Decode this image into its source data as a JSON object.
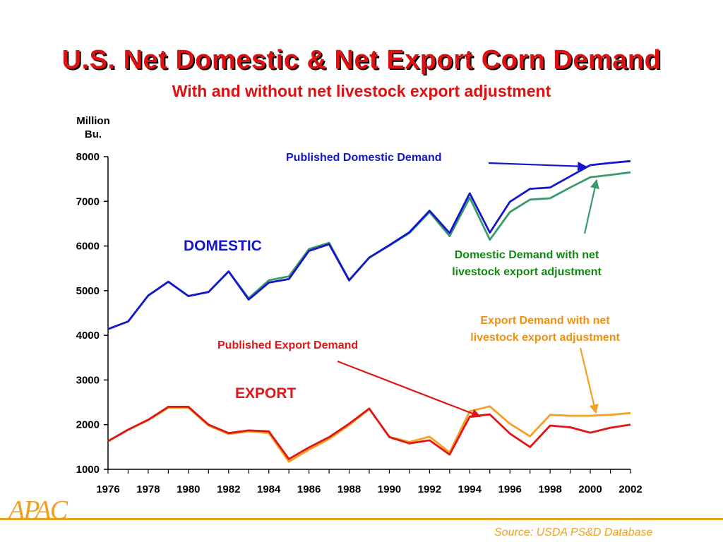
{
  "slide": {
    "title": "U.S. Net Domestic & Net Export Corn Demand",
    "subtitle": "With and without net livestock export adjustment",
    "logo": "APAC",
    "source": "Source:  USDA PS&D Database"
  },
  "colors": {
    "title": "#dd1111",
    "published_domestic": "#1515cc",
    "adjusted_domestic": "#3a9a6a",
    "published_export": "#e01515",
    "adjusted_export": "#f5a020",
    "label_domestic_adjusted": "#118811",
    "label_export_adjusted": "#f09010",
    "footer": "#f0a020"
  },
  "chart_data": {
    "type": "line",
    "ylabel": "Million\nBu.",
    "ylim": [
      1000,
      8000
    ],
    "yticks": [
      1000,
      2000,
      3000,
      4000,
      5000,
      6000,
      7000,
      8000
    ],
    "xlim": [
      1976,
      2002
    ],
    "xticks": [
      1976,
      1978,
      1980,
      1982,
      1984,
      1986,
      1988,
      1990,
      1992,
      1994,
      1996,
      1998,
      2000,
      2002
    ],
    "x": [
      1976,
      1977,
      1978,
      1979,
      1980,
      1981,
      1982,
      1983,
      1984,
      1985,
      1986,
      1987,
      1988,
      1989,
      1990,
      1991,
      1992,
      1993,
      1994,
      1995,
      1996,
      1997,
      1998,
      1999,
      2000,
      2001,
      2002
    ],
    "series": [
      {
        "name": "Published Domestic Demand",
        "color_key": "published_domestic",
        "values": [
          4140,
          4310,
          4890,
          5200,
          4880,
          4970,
          5430,
          4800,
          5180,
          5260,
          5890,
          6040,
          5230,
          5740,
          6020,
          6310,
          6790,
          6290,
          7180,
          6300,
          6990,
          7280,
          7310,
          7560,
          7810,
          7860,
          7900
        ]
      },
      {
        "name": "Domestic Demand with net livestock export adjustment",
        "color_key": "adjusted_domestic",
        "values": [
          4140,
          4310,
          4890,
          5200,
          4880,
          4970,
          5430,
          4830,
          5230,
          5320,
          5930,
          6070,
          5240,
          5740,
          6010,
          6290,
          6760,
          6220,
          7080,
          6140,
          6760,
          7040,
          7070,
          7310,
          7540,
          7590,
          7650
        ]
      },
      {
        "name": "Published Export Demand",
        "color_key": "published_export",
        "values": [
          1630,
          1890,
          2110,
          2400,
          2400,
          2000,
          1810,
          1870,
          1850,
          1230,
          1490,
          1720,
          2020,
          2360,
          1720,
          1580,
          1650,
          1330,
          2180,
          2230,
          1800,
          1500,
          1980,
          1940,
          1820,
          1930,
          2000
        ]
      },
      {
        "name": "Export Demand with net livestock export adjustment",
        "color_key": "adjusted_export",
        "values": [
          1630,
          1880,
          2100,
          2380,
          2380,
          1980,
          1790,
          1850,
          1810,
          1170,
          1440,
          1680,
          1990,
          2350,
          1730,
          1610,
          1730,
          1380,
          2300,
          2410,
          2020,
          1740,
          2220,
          2200,
          2200,
          2220,
          2260
        ]
      }
    ],
    "annotations": {
      "domestic": "DOMESTIC",
      "export": "EXPORT",
      "published_domestic": "Published Domestic Demand",
      "adjusted_domestic": [
        "Domestic Demand with net",
        "livestock export adjustment"
      ],
      "published_export": "Published Export Demand",
      "adjusted_export": [
        "Export Demand with net",
        "livestock export adjustment"
      ]
    }
  }
}
